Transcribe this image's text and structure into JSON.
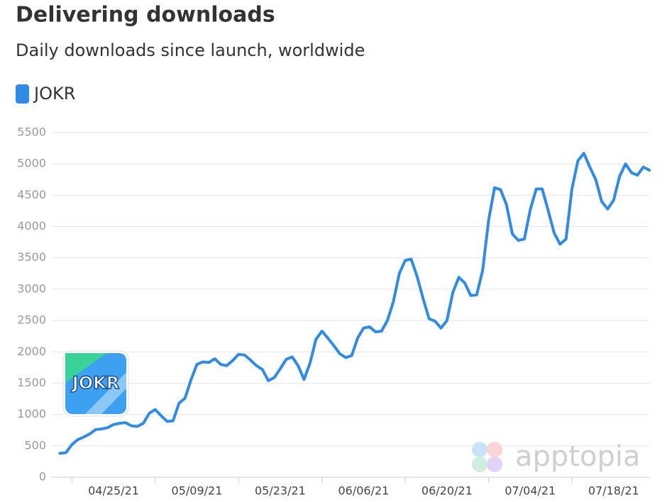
{
  "chart_data": {
    "type": "line",
    "title": "Delivering downloads",
    "subtitle": "Daily downloads since launch, worldwide",
    "logo_text": "JOKR",
    "watermark": "apptopia",
    "legend": "top-left",
    "grid": true,
    "ylim": [
      0,
      5500
    ],
    "yticks": [
      0,
      500,
      1000,
      1500,
      2000,
      2500,
      3000,
      3500,
      4000,
      4500,
      5000,
      5500
    ],
    "categories": [
      null,
      null,
      null,
      null,
      null,
      null,
      null,
      null,
      null,
      "04/25/21",
      null,
      null,
      null,
      null,
      null,
      null,
      null,
      null,
      null,
      null,
      null,
      null,
      null,
      "05/09/21",
      null,
      null,
      null,
      null,
      null,
      null,
      null,
      null,
      null,
      null,
      null,
      null,
      null,
      "05/23/21",
      null,
      null,
      null,
      null,
      null,
      null,
      null,
      null,
      null,
      null,
      null,
      null,
      null,
      "06/06/21",
      null,
      null,
      null,
      null,
      null,
      null,
      null,
      null,
      null,
      null,
      null,
      null,
      null,
      "06/20/21",
      null,
      null,
      null,
      null,
      null,
      null,
      null,
      null,
      null,
      null,
      null,
      null,
      null,
      "07/04/21",
      null,
      null,
      null,
      null,
      null,
      null,
      null,
      null,
      null,
      null,
      null,
      null,
      null,
      "07/18/21",
      null,
      null,
      null,
      null,
      null,
      null
    ],
    "series": [
      {
        "name": "JOKR",
        "color": "#2f8be6",
        "values": [
          380,
          390,
          520,
          600,
          640,
          690,
          760,
          770,
          790,
          840,
          860,
          870,
          820,
          810,
          860,
          1020,
          1080,
          980,
          890,
          900,
          1180,
          1260,
          1550,
          1800,
          1840,
          1830,
          1890,
          1800,
          1780,
          1860,
          1960,
          1950,
          1870,
          1780,
          1720,
          1540,
          1590,
          1730,
          1880,
          1920,
          1780,
          1560,
          1820,
          2200,
          2330,
          2220,
          2100,
          1970,
          1910,
          1940,
          2220,
          2380,
          2400,
          2320,
          2330,
          2500,
          2800,
          3250,
          3460,
          3480,
          3200,
          2850,
          2530,
          2490,
          2380,
          2500,
          2950,
          3190,
          3100,
          2900,
          2910,
          3300,
          4100,
          4620,
          4590,
          4350,
          3880,
          3780,
          3800,
          4270,
          4600,
          4600,
          4260,
          3900,
          3720,
          3800,
          4600,
          5050,
          5170,
          4950,
          4750,
          4400,
          4280,
          4420,
          4800,
          5000,
          4860,
          4820,
          4950,
          4900
        ]
      }
    ]
  }
}
